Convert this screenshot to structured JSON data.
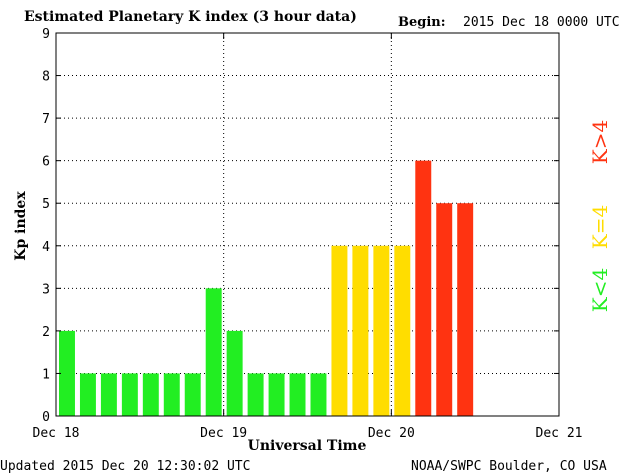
{
  "chart_data": {
    "type": "bar",
    "title": "Estimated Planetary K index (3 hour data)",
    "begin_label": "Begin:",
    "begin_value": "2015 Dec 18 0000 UTC",
    "xlabel": "Universal Time",
    "ylabel": "Kp index",
    "ylim": [
      0,
      9
    ],
    "yticks": [
      "0",
      "1",
      "2",
      "3",
      "4",
      "5",
      "6",
      "7",
      "8",
      "9"
    ],
    "xticks": [
      "Dec 18",
      "Dec 19",
      "Dec 20",
      "Dec 21"
    ],
    "grid": true,
    "interval_hours": 3,
    "total_intervals": 24,
    "values": [
      2,
      1,
      1,
      1,
      1,
      1,
      1,
      3,
      2,
      1,
      1,
      1,
      1,
      4,
      4,
      4,
      4,
      6,
      5,
      5
    ],
    "thresholds": {
      "green_below": 4,
      "yellow_equal": 4,
      "red_above": 4
    },
    "colors": {
      "low": "#22ee22",
      "mid": "#ffdd00",
      "high": "#ff3311"
    },
    "legend": [
      {
        "label": "K>4",
        "color": "#ff3311"
      },
      {
        "label": "K=4",
        "color": "#ffdd00"
      },
      {
        "label": "K<4",
        "color": "#22ee22"
      }
    ]
  },
  "footer": {
    "updated": "Updated 2015 Dec 20 12:30:02 UTC",
    "source": "NOAA/SWPC Boulder, CO USA"
  }
}
